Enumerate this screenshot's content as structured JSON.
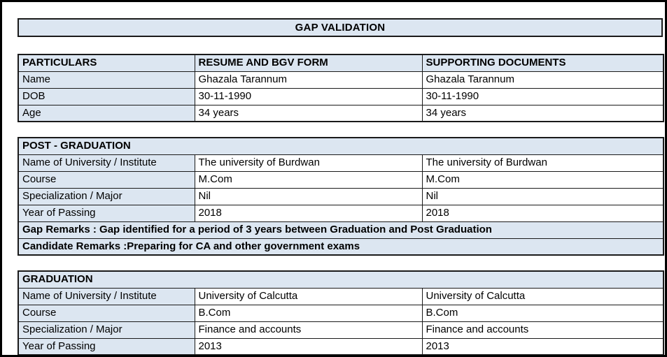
{
  "page": {
    "title": "GAP VALIDATION"
  },
  "colors": {
    "header_fill": "#dce6f1",
    "border": "#1a1a1a",
    "text": "#000000",
    "background": "#ffffff"
  },
  "identity_table": {
    "headers": [
      "PARTICULARS",
      "RESUME AND BGV FORM",
      "SUPPORTING DOCUMENTS"
    ],
    "rows": [
      {
        "label": "Name",
        "resume": "Ghazala Tarannum",
        "supporting": "Ghazala Tarannum"
      },
      {
        "label": "DOB",
        "resume": "30-11-1990",
        "supporting": "30-11-1990"
      },
      {
        "label": "Age",
        "resume": "34 years",
        "supporting": "34 years"
      }
    ]
  },
  "post_graduation": {
    "title": "POST - GRADUATION",
    "rows": [
      {
        "label": "Name of University / Institute",
        "resume": "The university of Burdwan",
        "supporting": "The university of Burdwan"
      },
      {
        "label": "Course",
        "resume": "M.Com",
        "supporting": "M.Com"
      },
      {
        "label": "Specialization / Major",
        "resume": "Nil",
        "supporting": "Nil"
      },
      {
        "label": "Year of Passing",
        "resume": "2018",
        "supporting": "2018"
      }
    ],
    "gap_remarks": "Gap Remarks : Gap identified for a period of 3 years between Graduation and Post Graduation",
    "candidate_remarks": "Candidate Remarks :Preparing for CA and other government exams"
  },
  "graduation": {
    "title": "GRADUATION",
    "rows": [
      {
        "label": "Name of University / Institute",
        "resume": "University of Calcutta",
        "supporting": "University of Calcutta"
      },
      {
        "label": "Course",
        "resume": "B.Com",
        "supporting": "B.Com"
      },
      {
        "label": "Specialization / Major",
        "resume": "Finance and accounts",
        "supporting": "Finance and accounts"
      },
      {
        "label": "Year of Passing",
        "resume": "2013",
        "supporting": "2013"
      }
    ]
  }
}
